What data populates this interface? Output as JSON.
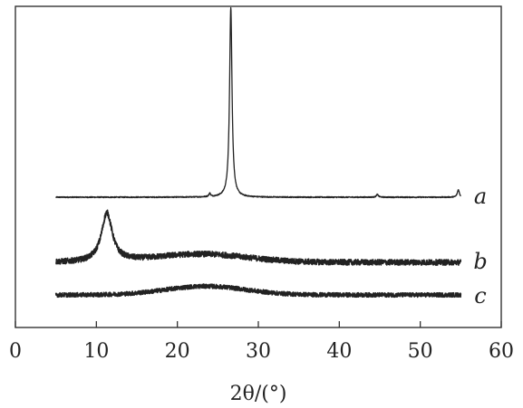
{
  "chart_data": {
    "type": "line",
    "title": "",
    "xlabel": "2θ/(°)",
    "ylabel": "",
    "xlim": [
      0,
      60
    ],
    "xticks": [
      "0",
      "10",
      "20",
      "30",
      "40",
      "50",
      "60"
    ],
    "grid": false,
    "legend": "none",
    "series": [
      {
        "name": "a",
        "x_range": [
          5,
          55
        ],
        "baseline": 0,
        "noise": 0.08,
        "peaks": [
          {
            "x": 24.0,
            "height": 0.5,
            "width": 0.12
          },
          {
            "x": 26.6,
            "height": 28.0,
            "width": 0.18
          },
          {
            "x": 44.7,
            "height": 0.4,
            "width": 0.15
          },
          {
            "x": 54.7,
            "height": 1.1,
            "width": 0.15
          }
        ],
        "humps": []
      },
      {
        "name": "b",
        "x_range": [
          5,
          55
        ],
        "baseline": 0,
        "noise": 0.35,
        "peaks": [
          {
            "x": 11.3,
            "height": 6.0,
            "width": 0.8
          }
        ],
        "humps": [
          {
            "x": 23.0,
            "height": 1.0,
            "width": 8.0
          }
        ]
      },
      {
        "name": "c",
        "x_range": [
          5,
          55
        ],
        "baseline": 0,
        "noise": 0.3,
        "peaks": [],
        "humps": [
          {
            "x": 23.5,
            "height": 1.2,
            "width": 7.0
          }
        ]
      }
    ],
    "colors": {
      "line": "#222222",
      "frame": "#333333"
    }
  }
}
